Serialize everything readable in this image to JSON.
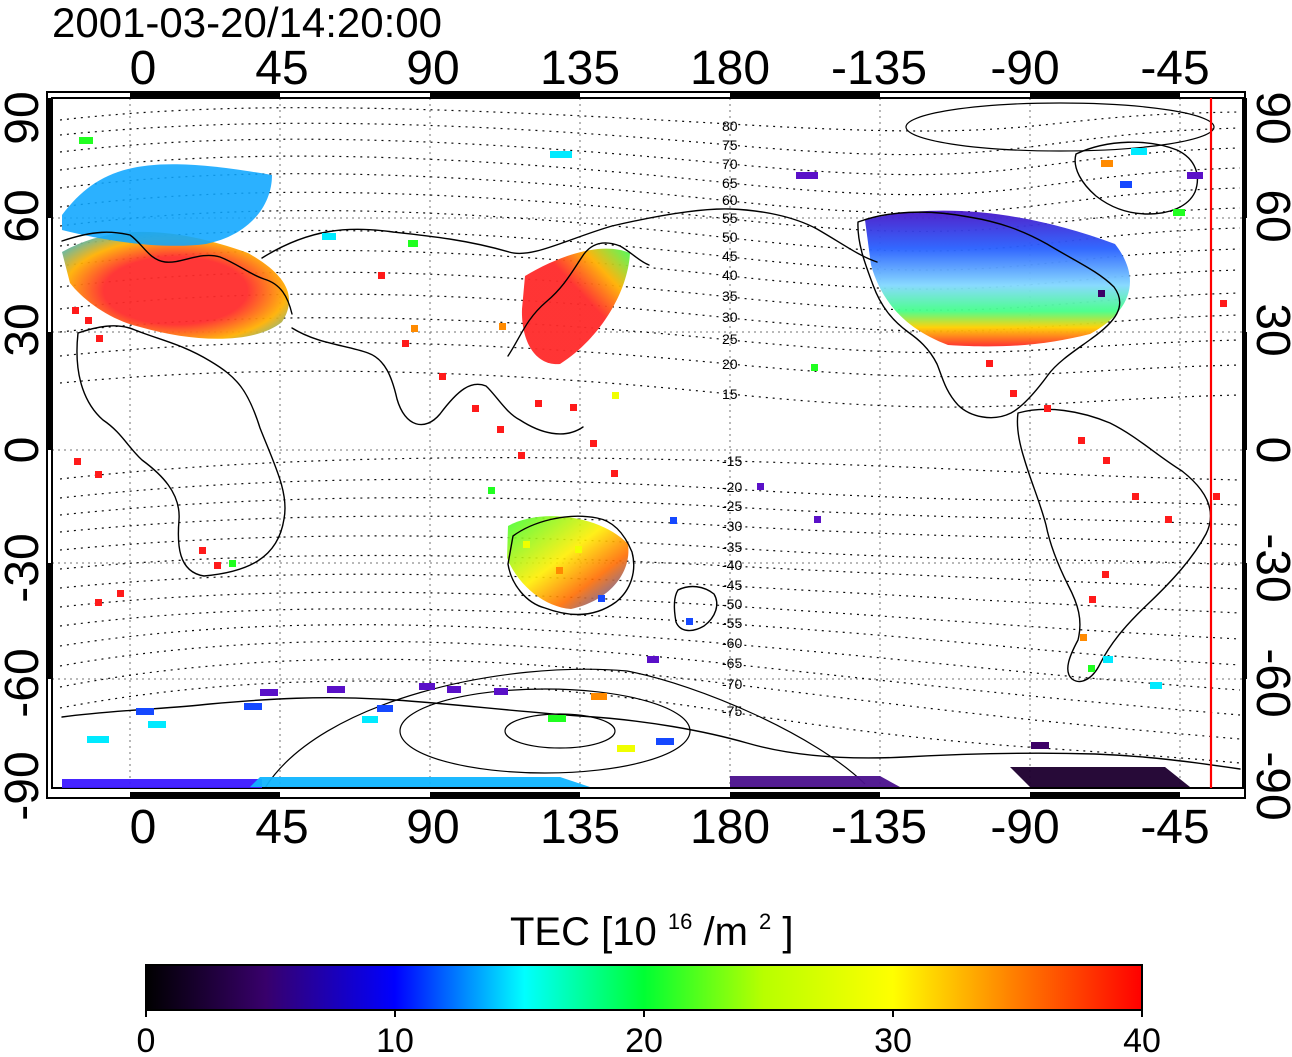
{
  "header": {
    "timestamp": "2001-03-20/14:20:00"
  },
  "map": {
    "type": "global-tec-map",
    "projection": "equirectangular",
    "lon_labels": [
      "0",
      "45",
      "90",
      "135",
      "180",
      "-135",
      "-90",
      "-45"
    ],
    "lat_labels": [
      "90",
      "60",
      "30",
      "0",
      "-30",
      "-60",
      "-90"
    ],
    "contour_labels_north": [
      "80",
      "75",
      "70",
      "65",
      "60",
      "55",
      "50",
      "45",
      "40",
      "35",
      "30",
      "25",
      "20",
      "15"
    ],
    "contour_labels_south": [
      "-15",
      "-20",
      "-25",
      "-30",
      "-35",
      "-40",
      "-45",
      "-50",
      "-55",
      "-60",
      "-65",
      "-70",
      "-75"
    ],
    "terminator_color": "#ff0000",
    "grid": true,
    "coastlines": true
  },
  "colorbar": {
    "title_prefix": "TEC",
    "title_unit": "[10",
    "title_exp": "16",
    "title_mid": "/m",
    "title_exp2": "2",
    "title_end": "]",
    "ticks": [
      "0",
      "10",
      "20",
      "30",
      "40"
    ],
    "range": [
      0,
      40
    ],
    "colors": [
      "#000000",
      "#4b0082",
      "#0000ff",
      "#00ffff",
      "#00ff00",
      "#ffff00",
      "#ff7f00",
      "#ff0000"
    ]
  },
  "legend_colors": {
    "red": "#ff1a1a",
    "orange": "#ff8a00",
    "yellow": "#f0ff00",
    "green": "#20ff20",
    "cyan": "#00eaff",
    "blue": "#1548ff",
    "indigo": "#5a10c8",
    "violet": "#3c0066",
    "dark": "#0a0010"
  }
}
